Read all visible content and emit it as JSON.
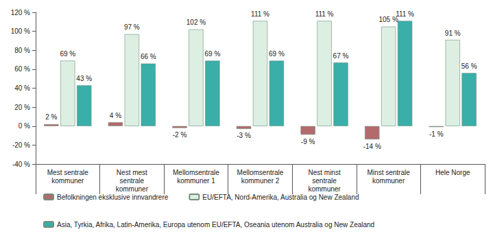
{
  "chart_data": {
    "type": "bar",
    "categories": [
      "Mest sentrale\nkommuner",
      "Nest mest\nsentrale\nkommuner",
      "Mellomsentrale\nkommuner 1",
      "Mellomsentrale\nkommuner 2",
      "Nest minst\nsentrale\nkommuner",
      "Minst sentrale\nkommuner",
      "Hele Norge"
    ],
    "series": [
      {
        "name": "Befolkningen eksklusive innvandrere",
        "color": "#b36a6d",
        "values": [
          2,
          4,
          -2,
          -3,
          -9,
          -14,
          -1
        ],
        "value_labels": [
          "2 %",
          "4 %",
          "-2 %",
          "-3 %",
          "-9 %",
          "-14 %",
          "-1 %"
        ]
      },
      {
        "name": "EU/EFTA, Nord-Amerika, Australia og New Zealand",
        "color": "#dcefe2",
        "values": [
          69,
          97,
          102,
          111,
          111,
          105,
          91
        ],
        "value_labels": [
          "69 %",
          "97 %",
          "102 %",
          "111 %",
          "111 %",
          "105 %",
          "91 %"
        ]
      },
      {
        "name": "Asia, Tyrkia, Afrika, Latin-Amerika, Europa utenom EU/EFTA, Oseania utenom Australia og New Zealand",
        "color": "#3aaea8",
        "values": [
          43,
          66,
          69,
          69,
          67,
          111,
          56
        ],
        "value_labels": [
          "43 %",
          "66 %",
          "69 %",
          "69 %",
          "67 %",
          "111 %",
          "56 %"
        ]
      }
    ],
    "ylim": [
      -40,
      120
    ],
    "yticks": [
      {
        "value": -40,
        "label": "-40 %"
      },
      {
        "value": -20,
        "label": "-20 %"
      },
      {
        "value": 0,
        "label": "0 %"
      },
      {
        "value": 20,
        "label": "20 %"
      },
      {
        "value": 40,
        "label": "40 %"
      },
      {
        "value": 60,
        "label": "60 %"
      },
      {
        "value": 80,
        "label": "80 %"
      },
      {
        "value": 100,
        "label": "100 %"
      },
      {
        "value": 120,
        "label": "120 %"
      }
    ],
    "grid": false,
    "legend": "bottom",
    "data_labels": true
  }
}
